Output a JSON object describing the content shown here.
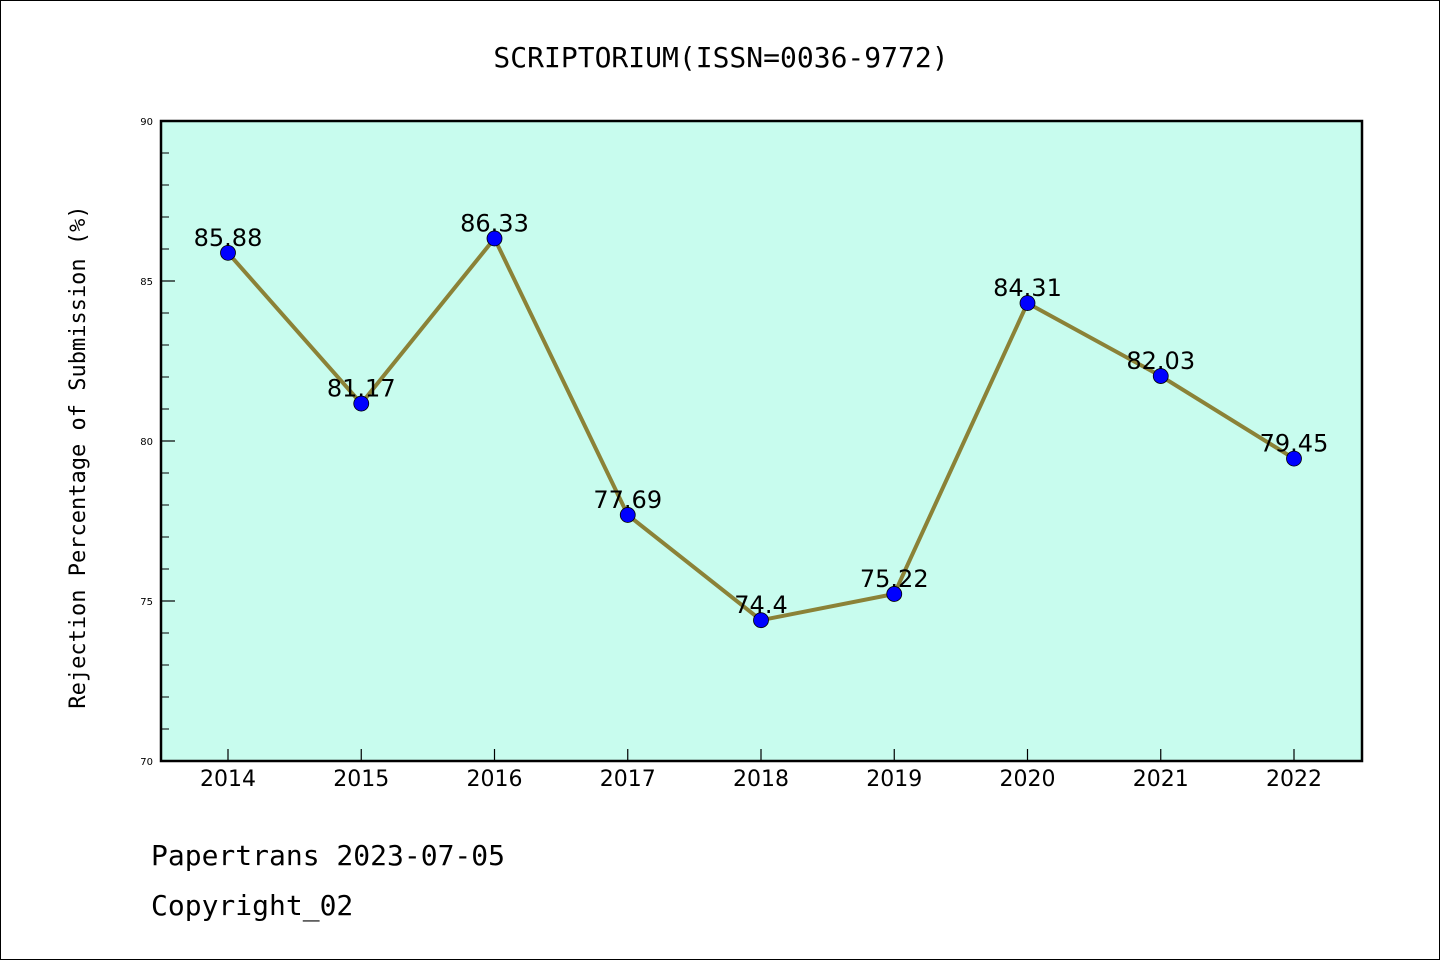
{
  "chart_data": {
    "type": "line",
    "title": "SCRIPTORIUM(ISSN=0036-9772)",
    "ylabel": "Rejection Percentage of Submission (%)",
    "xlabel": "",
    "categories": [
      "2014",
      "2015",
      "2016",
      "2017",
      "2018",
      "2019",
      "2020",
      "2021",
      "2022"
    ],
    "series": [
      {
        "values": [
          85.88,
          81.17,
          86.33,
          77.69,
          74.4,
          75.22,
          84.31,
          82.03,
          79.45
        ],
        "data_labels": [
          "85.88",
          "81.17",
          "86.33",
          "77.69",
          "74.4",
          "75.22",
          "84.31",
          "82.03",
          "79.45"
        ]
      }
    ],
    "ylim": [
      70,
      90
    ],
    "yticks": [
      "70",
      "75",
      "80",
      "85",
      "90"
    ],
    "grid": false,
    "colors": {
      "plot_background": "#c8fcee",
      "line": "#8b8237",
      "marker": "#0000ff"
    }
  },
  "footer": {
    "line1": "Papertrans 2023-07-05",
    "line2": "Copyright_02"
  }
}
